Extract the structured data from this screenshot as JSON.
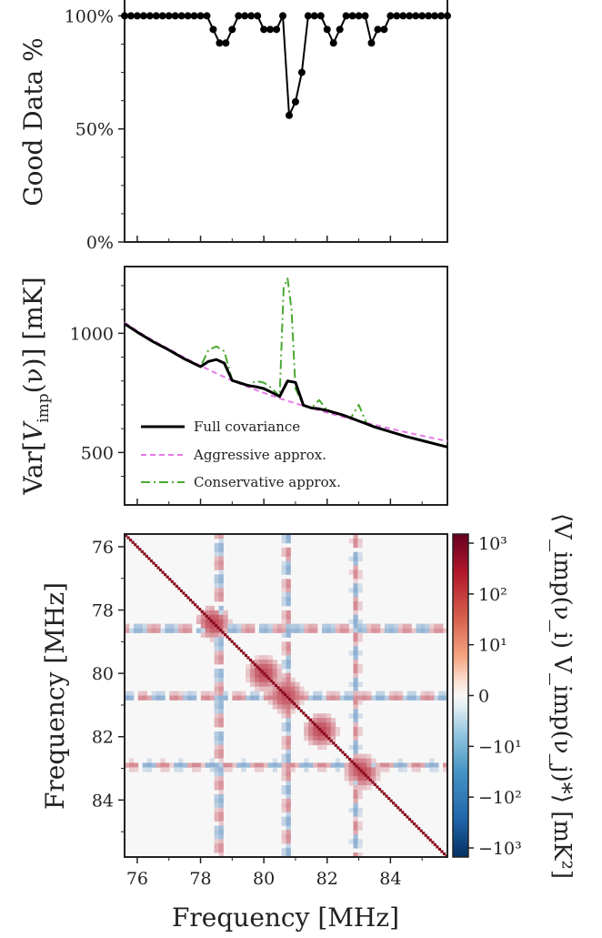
{
  "chart_data": [
    {
      "type": "line",
      "panel": "good-data",
      "ylabel": "Good Data %",
      "ytick_labels": [
        "100%",
        "50%",
        "0%"
      ],
      "yticks": [
        100,
        50,
        0
      ],
      "ylim": [
        0,
        105
      ],
      "xlim": [
        75.6,
        85.8
      ],
      "series": [
        {
          "x": [
            75.6,
            75.8,
            76.0,
            76.2,
            76.4,
            76.6,
            76.8,
            77.0,
            77.2,
            77.4,
            77.6,
            77.8,
            78.0,
            78.2,
            78.4,
            78.6,
            78.8,
            79.0,
            79.2,
            79.4,
            79.6,
            79.8,
            80.0,
            80.2,
            80.4,
            80.6,
            80.8,
            81.0,
            81.2,
            81.4,
            81.6,
            81.8,
            82.0,
            82.2,
            82.4,
            82.6,
            82.8,
            83.0,
            83.2,
            83.4,
            83.6,
            83.8,
            84.0,
            84.2,
            84.4,
            84.6,
            84.8,
            85.0,
            85.2,
            85.4,
            85.6,
            85.8
          ],
          "y": [
            100,
            100,
            100,
            100,
            100,
            100,
            100,
            100,
            100,
            100,
            100,
            100,
            100,
            100,
            94,
            88,
            88,
            94,
            100,
            100,
            100,
            100,
            94,
            94,
            94,
            100,
            56,
            62,
            75,
            100,
            100,
            100,
            94,
            88,
            94,
            100,
            100,
            100,
            100,
            88,
            94,
            94,
            100,
            100,
            100,
            100,
            100,
            100,
            100,
            100,
            100,
            100
          ]
        }
      ]
    },
    {
      "type": "line",
      "panel": "variance",
      "ylabel": "Var[V_imp(ν)] [mK]",
      "ylabel_parts": {
        "pre": "Var[",
        "v": "V",
        "sub": "imp",
        "mid": "(ν)] [mK]"
      },
      "yticks": [
        500,
        1000
      ],
      "ytick_labels": [
        "500",
        "1000"
      ],
      "ylim": [
        280,
        1280
      ],
      "xlim": [
        75.6,
        85.8
      ],
      "legend": {
        "location": "lower-left"
      },
      "series": [
        {
          "name": "Full covariance",
          "color": "#000000",
          "style": "solid",
          "x": [
            75.6,
            76.0,
            76.5,
            77.0,
            77.5,
            78.0,
            78.25,
            78.5,
            78.75,
            79.0,
            79.5,
            79.75,
            80.0,
            80.25,
            80.5,
            80.75,
            81.0,
            81.25,
            81.5,
            81.75,
            82.0,
            82.5,
            82.75,
            83.0,
            83.25,
            83.5,
            84.0,
            84.5,
            85.0,
            85.5,
            85.8
          ],
          "y": [
            1040,
            1005,
            965,
            930,
            892,
            860,
            882,
            890,
            875,
            802,
            781,
            776,
            768,
            752,
            735,
            800,
            794,
            698,
            687,
            683,
            676,
            657,
            645,
            632,
            620,
            607,
            587,
            567,
            550,
            533,
            523
          ]
        },
        {
          "name": "Aggressive approx.",
          "color": "#e879e8",
          "style": "dashed",
          "x": [
            75.6,
            76.0,
            76.5,
            77.0,
            77.5,
            78.0,
            78.5,
            79.0,
            79.5,
            80.0,
            80.5,
            81.0,
            81.5,
            82.0,
            82.5,
            83.0,
            83.5,
            84.0,
            84.5,
            85.0,
            85.5,
            85.8
          ],
          "y": [
            1045,
            1010,
            970,
            934,
            898,
            864,
            832,
            801,
            775,
            750,
            727,
            706,
            686,
            667,
            649,
            632,
            616,
            600,
            585,
            570,
            556,
            548
          ]
        },
        {
          "name": "Conservative approx.",
          "color": "#4aa832",
          "style": "dashdot",
          "x": [
            75.6,
            76.0,
            76.5,
            77.0,
            77.5,
            78.0,
            78.25,
            78.5,
            78.75,
            79.0,
            79.5,
            79.75,
            80.0,
            80.25,
            80.5,
            80.625,
            80.75,
            80.875,
            81.0,
            81.25,
            81.5,
            81.75,
            82.0,
            82.5,
            82.75,
            83.0,
            83.25,
            83.5,
            84.0,
            84.5,
            85.0,
            85.5,
            85.8
          ],
          "y": [
            1040,
            1005,
            965,
            930,
            892,
            860,
            930,
            945,
            925,
            802,
            781,
            800,
            793,
            770,
            735,
            1190,
            1230,
            1100,
            768,
            698,
            687,
            720,
            676,
            657,
            645,
            700,
            620,
            607,
            587,
            567,
            550,
            533,
            523
          ]
        }
      ]
    },
    {
      "type": "heatmap",
      "panel": "covariance-matrix",
      "xlabel": "Frequency [MHz]",
      "ylabel": "Frequency [MHz]",
      "xticks": [
        76,
        78,
        80,
        82,
        84
      ],
      "yticks": [
        76,
        78,
        80,
        82,
        84
      ],
      "xlim": [
        75.6,
        85.8
      ],
      "ylim": [
        75.6,
        85.8
      ],
      "y_inverted": true,
      "colormap": "RdBu_r",
      "scale": "symlog",
      "colorbar": {
        "label": "⟨V_imp(ν_i) V_imp(ν_j)*⟩ [mK²]",
        "tick_labels": [
          "10³",
          "10²",
          "10¹",
          "0",
          "−10¹",
          "−10²",
          "−10³"
        ],
        "ticks": [
          1000,
          100,
          10,
          0,
          -10,
          -100,
          -1000
        ]
      },
      "features": {
        "diagonal": "dark red, all channels",
        "blobs_MHz": [
          78.4,
          80.0,
          80.7,
          81.8,
          83.1
        ],
        "stripe_channels_MHz": [
          78.6,
          80.75,
          82.9
        ]
      }
    }
  ],
  "legend_labels": [
    "Full covariance",
    "Aggressive approx.",
    "Conservative approx."
  ],
  "xtick_labels": [
    "76",
    "78",
    "80",
    "82",
    "84"
  ],
  "colors": {
    "full": "#000000",
    "aggressive": "#e879e8",
    "conservative": "#4aa832"
  }
}
